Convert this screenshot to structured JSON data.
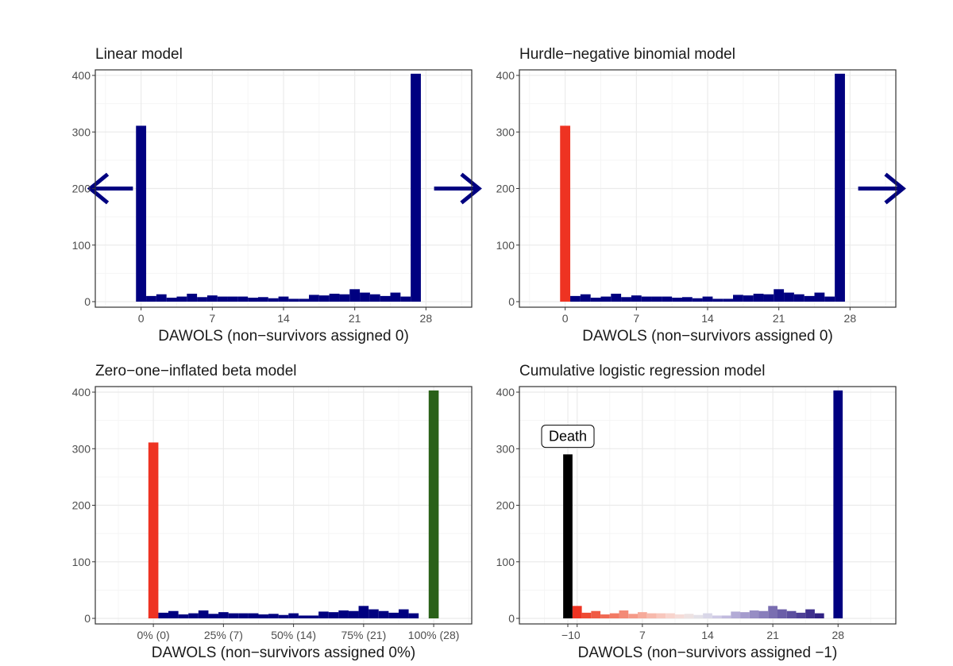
{
  "figure": {
    "colors": {
      "navy": "#000080",
      "red": "#ee3322",
      "green": "#2a6118",
      "black": "#000000",
      "grid_major": "#ebebeb",
      "grid_minor": "#f5f5f5",
      "panel_border": "#333333"
    }
  },
  "chart_data": [
    {
      "type": "bar",
      "title": "Linear model",
      "xlabel": "DAWOLS (non−survivors assigned 0)",
      "xlim": [
        -4.5,
        32.5
      ],
      "ylim": [
        0,
        400
      ],
      "x_ticks": [
        0,
        7,
        14,
        21,
        28
      ],
      "x_tick_labels": [
        "0",
        "7",
        "14",
        "21",
        "28"
      ],
      "y_ticks": [
        0,
        100,
        200,
        300,
        400
      ],
      "y_tick_labels": [
        "0",
        "100",
        "200",
        "300",
        "400"
      ],
      "grid": true,
      "bins": [
        {
          "x": 0,
          "y": 311,
          "color": "navy"
        },
        {
          "x": 1,
          "y": 10,
          "color": "navy"
        },
        {
          "x": 2,
          "y": 13,
          "color": "navy"
        },
        {
          "x": 3,
          "y": 7,
          "color": "navy"
        },
        {
          "x": 4,
          "y": 9,
          "color": "navy"
        },
        {
          "x": 5,
          "y": 14,
          "color": "navy"
        },
        {
          "x": 6,
          "y": 8,
          "color": "navy"
        },
        {
          "x": 7,
          "y": 11,
          "color": "navy"
        },
        {
          "x": 8,
          "y": 9,
          "color": "navy"
        },
        {
          "x": 9,
          "y": 9,
          "color": "navy"
        },
        {
          "x": 10,
          "y": 9,
          "color": "navy"
        },
        {
          "x": 11,
          "y": 7,
          "color": "navy"
        },
        {
          "x": 12,
          "y": 8,
          "color": "navy"
        },
        {
          "x": 13,
          "y": 6,
          "color": "navy"
        },
        {
          "x": 14,
          "y": 9,
          "color": "navy"
        },
        {
          "x": 15,
          "y": 5,
          "color": "navy"
        },
        {
          "x": 16,
          "y": 5,
          "color": "navy"
        },
        {
          "x": 17,
          "y": 12,
          "color": "navy"
        },
        {
          "x": 18,
          "y": 11,
          "color": "navy"
        },
        {
          "x": 19,
          "y": 14,
          "color": "navy"
        },
        {
          "x": 20,
          "y": 13,
          "color": "navy"
        },
        {
          "x": 21,
          "y": 22,
          "color": "navy"
        },
        {
          "x": 22,
          "y": 16,
          "color": "navy"
        },
        {
          "x": 23,
          "y": 13,
          "color": "navy"
        },
        {
          "x": 24,
          "y": 10,
          "color": "navy"
        },
        {
          "x": 25,
          "y": 16,
          "color": "navy"
        },
        {
          "x": 26,
          "y": 9,
          "color": "navy"
        },
        {
          "x": 27,
          "y": 403,
          "color": "navy"
        }
      ],
      "arrows": [
        {
          "direction": "left",
          "x_from": -0.8,
          "x_to": -5.0,
          "y": 200
        },
        {
          "direction": "right",
          "x_from": 28.8,
          "x_to": 33.2,
          "y": 200
        }
      ]
    },
    {
      "type": "bar",
      "title": "Hurdle−negative binomial model",
      "xlabel": "DAWOLS (non−survivors assigned 0)",
      "xlim": [
        -4.5,
        32.5
      ],
      "ylim": [
        0,
        400
      ],
      "x_ticks": [
        0,
        7,
        14,
        21,
        28
      ],
      "x_tick_labels": [
        "0",
        "7",
        "14",
        "21",
        "28"
      ],
      "y_ticks": [
        0,
        100,
        200,
        300,
        400
      ],
      "y_tick_labels": [
        "0",
        "100",
        "200",
        "300",
        "400"
      ],
      "grid": true,
      "bins": [
        {
          "x": 0,
          "y": 311,
          "color": "red"
        },
        {
          "x": 1,
          "y": 10,
          "color": "navy"
        },
        {
          "x": 2,
          "y": 13,
          "color": "navy"
        },
        {
          "x": 3,
          "y": 7,
          "color": "navy"
        },
        {
          "x": 4,
          "y": 9,
          "color": "navy"
        },
        {
          "x": 5,
          "y": 14,
          "color": "navy"
        },
        {
          "x": 6,
          "y": 8,
          "color": "navy"
        },
        {
          "x": 7,
          "y": 11,
          "color": "navy"
        },
        {
          "x": 8,
          "y": 9,
          "color": "navy"
        },
        {
          "x": 9,
          "y": 9,
          "color": "navy"
        },
        {
          "x": 10,
          "y": 9,
          "color": "navy"
        },
        {
          "x": 11,
          "y": 7,
          "color": "navy"
        },
        {
          "x": 12,
          "y": 8,
          "color": "navy"
        },
        {
          "x": 13,
          "y": 6,
          "color": "navy"
        },
        {
          "x": 14,
          "y": 9,
          "color": "navy"
        },
        {
          "x": 15,
          "y": 5,
          "color": "navy"
        },
        {
          "x": 16,
          "y": 5,
          "color": "navy"
        },
        {
          "x": 17,
          "y": 12,
          "color": "navy"
        },
        {
          "x": 18,
          "y": 11,
          "color": "navy"
        },
        {
          "x": 19,
          "y": 14,
          "color": "navy"
        },
        {
          "x": 20,
          "y": 13,
          "color": "navy"
        },
        {
          "x": 21,
          "y": 22,
          "color": "navy"
        },
        {
          "x": 22,
          "y": 16,
          "color": "navy"
        },
        {
          "x": 23,
          "y": 13,
          "color": "navy"
        },
        {
          "x": 24,
          "y": 10,
          "color": "navy"
        },
        {
          "x": 25,
          "y": 16,
          "color": "navy"
        },
        {
          "x": 26,
          "y": 9,
          "color": "navy"
        },
        {
          "x": 27,
          "y": 403,
          "color": "navy"
        }
      ],
      "arrows": [
        {
          "direction": "right",
          "x_from": 28.8,
          "x_to": 33.2,
          "y": 200
        }
      ]
    },
    {
      "type": "bar",
      "title": "Zero−one−inflated beta model",
      "xlabel": "DAWOLS (non−survivors assigned 0%)",
      "xlim": [
        -5.8,
        31.8
      ],
      "ylim": [
        0,
        400
      ],
      "x_ticks": [
        0,
        7,
        14,
        21,
        28
      ],
      "x_tick_labels": [
        "0% (0)",
        "25% (7)",
        "50% (14)",
        "75% (21)",
        "100% (28)"
      ],
      "y_ticks": [
        0,
        100,
        200,
        300,
        400
      ],
      "y_tick_labels": [
        "0",
        "100",
        "200",
        "300",
        "400"
      ],
      "grid": true,
      "bins": [
        {
          "x": 0,
          "y": 311,
          "color": "red"
        },
        {
          "x": 1,
          "y": 10,
          "color": "navy"
        },
        {
          "x": 2,
          "y": 13,
          "color": "navy"
        },
        {
          "x": 3,
          "y": 7,
          "color": "navy"
        },
        {
          "x": 4,
          "y": 9,
          "color": "navy"
        },
        {
          "x": 5,
          "y": 14,
          "color": "navy"
        },
        {
          "x": 6,
          "y": 8,
          "color": "navy"
        },
        {
          "x": 7,
          "y": 11,
          "color": "navy"
        },
        {
          "x": 8,
          "y": 9,
          "color": "navy"
        },
        {
          "x": 9,
          "y": 9,
          "color": "navy"
        },
        {
          "x": 10,
          "y": 9,
          "color": "navy"
        },
        {
          "x": 11,
          "y": 7,
          "color": "navy"
        },
        {
          "x": 12,
          "y": 8,
          "color": "navy"
        },
        {
          "x": 13,
          "y": 6,
          "color": "navy"
        },
        {
          "x": 14,
          "y": 9,
          "color": "navy"
        },
        {
          "x": 15,
          "y": 5,
          "color": "navy"
        },
        {
          "x": 16,
          "y": 5,
          "color": "navy"
        },
        {
          "x": 17,
          "y": 12,
          "color": "navy"
        },
        {
          "x": 18,
          "y": 11,
          "color": "navy"
        },
        {
          "x": 19,
          "y": 14,
          "color": "navy"
        },
        {
          "x": 20,
          "y": 13,
          "color": "navy"
        },
        {
          "x": 21,
          "y": 22,
          "color": "navy"
        },
        {
          "x": 22,
          "y": 16,
          "color": "navy"
        },
        {
          "x": 23,
          "y": 13,
          "color": "navy"
        },
        {
          "x": 24,
          "y": 10,
          "color": "navy"
        },
        {
          "x": 25,
          "y": 16,
          "color": "navy"
        },
        {
          "x": 26,
          "y": 9,
          "color": "navy"
        },
        {
          "x": 28,
          "y": 403,
          "color": "green"
        }
      ],
      "arrows": []
    },
    {
      "type": "bar",
      "title": "Cumulative logistic regression model",
      "xlabel": "DAWOLS (non−survivors assigned −1)",
      "xlim": [
        -6.2,
        34.2
      ],
      "ylim": [
        0,
        400
      ],
      "x_ticks": [
        -1,
        0,
        7,
        14,
        21,
        28
      ],
      "x_tick_labels": [
        "−1",
        "0",
        "7",
        "14",
        "21",
        "28"
      ],
      "y_ticks": [
        0,
        100,
        200,
        300,
        400
      ],
      "y_tick_labels": [
        "0",
        "100",
        "200",
        "300",
        "400"
      ],
      "grid": true,
      "bins": [
        {
          "x": -1,
          "y": 290,
          "color": "#000000"
        },
        {
          "x": 0,
          "y": 22,
          "color": "#ee3322"
        },
        {
          "x": 1,
          "y": 10,
          "color": "#ee4a33"
        },
        {
          "x": 2,
          "y": 13,
          "color": "#ef5b44"
        },
        {
          "x": 3,
          "y": 7,
          "color": "#f06a54"
        },
        {
          "x": 4,
          "y": 9,
          "color": "#f27a64"
        },
        {
          "x": 5,
          "y": 14,
          "color": "#f38a76"
        },
        {
          "x": 6,
          "y": 8,
          "color": "#f59a88"
        },
        {
          "x": 7,
          "y": 11,
          "color": "#f6aa9a"
        },
        {
          "x": 8,
          "y": 9,
          "color": "#f7b9ac"
        },
        {
          "x": 9,
          "y": 9,
          "color": "#f8c7bd"
        },
        {
          "x": 10,
          "y": 9,
          "color": "#f8d4cd"
        },
        {
          "x": 11,
          "y": 7,
          "color": "#f5dcd8"
        },
        {
          "x": 12,
          "y": 8,
          "color": "#ede2e2"
        },
        {
          "x": 13,
          "y": 6,
          "color": "#e3e1e8"
        },
        {
          "x": 14,
          "y": 9,
          "color": "#d9d7e8"
        },
        {
          "x": 15,
          "y": 5,
          "color": "#cec9e5"
        },
        {
          "x": 16,
          "y": 5,
          "color": "#c1bade"
        },
        {
          "x": 17,
          "y": 12,
          "color": "#b3abd6"
        },
        {
          "x": 18,
          "y": 11,
          "color": "#a59ccd"
        },
        {
          "x": 19,
          "y": 14,
          "color": "#978dc4"
        },
        {
          "x": 20,
          "y": 13,
          "color": "#887dbb"
        },
        {
          "x": 21,
          "y": 22,
          "color": "#7a6eb1"
        },
        {
          "x": 22,
          "y": 16,
          "color": "#6b5ea8"
        },
        {
          "x": 23,
          "y": 13,
          "color": "#5c4f9f"
        },
        {
          "x": 24,
          "y": 10,
          "color": "#4e4096"
        },
        {
          "x": 25,
          "y": 16,
          "color": "#3f308d"
        },
        {
          "x": 26,
          "y": 9,
          "color": "#302184"
        },
        {
          "x": 28,
          "y": 403,
          "color": "navy"
        }
      ],
      "arrows": [],
      "annotation": {
        "text": "Death",
        "x": -1,
        "y": 322
      }
    }
  ]
}
